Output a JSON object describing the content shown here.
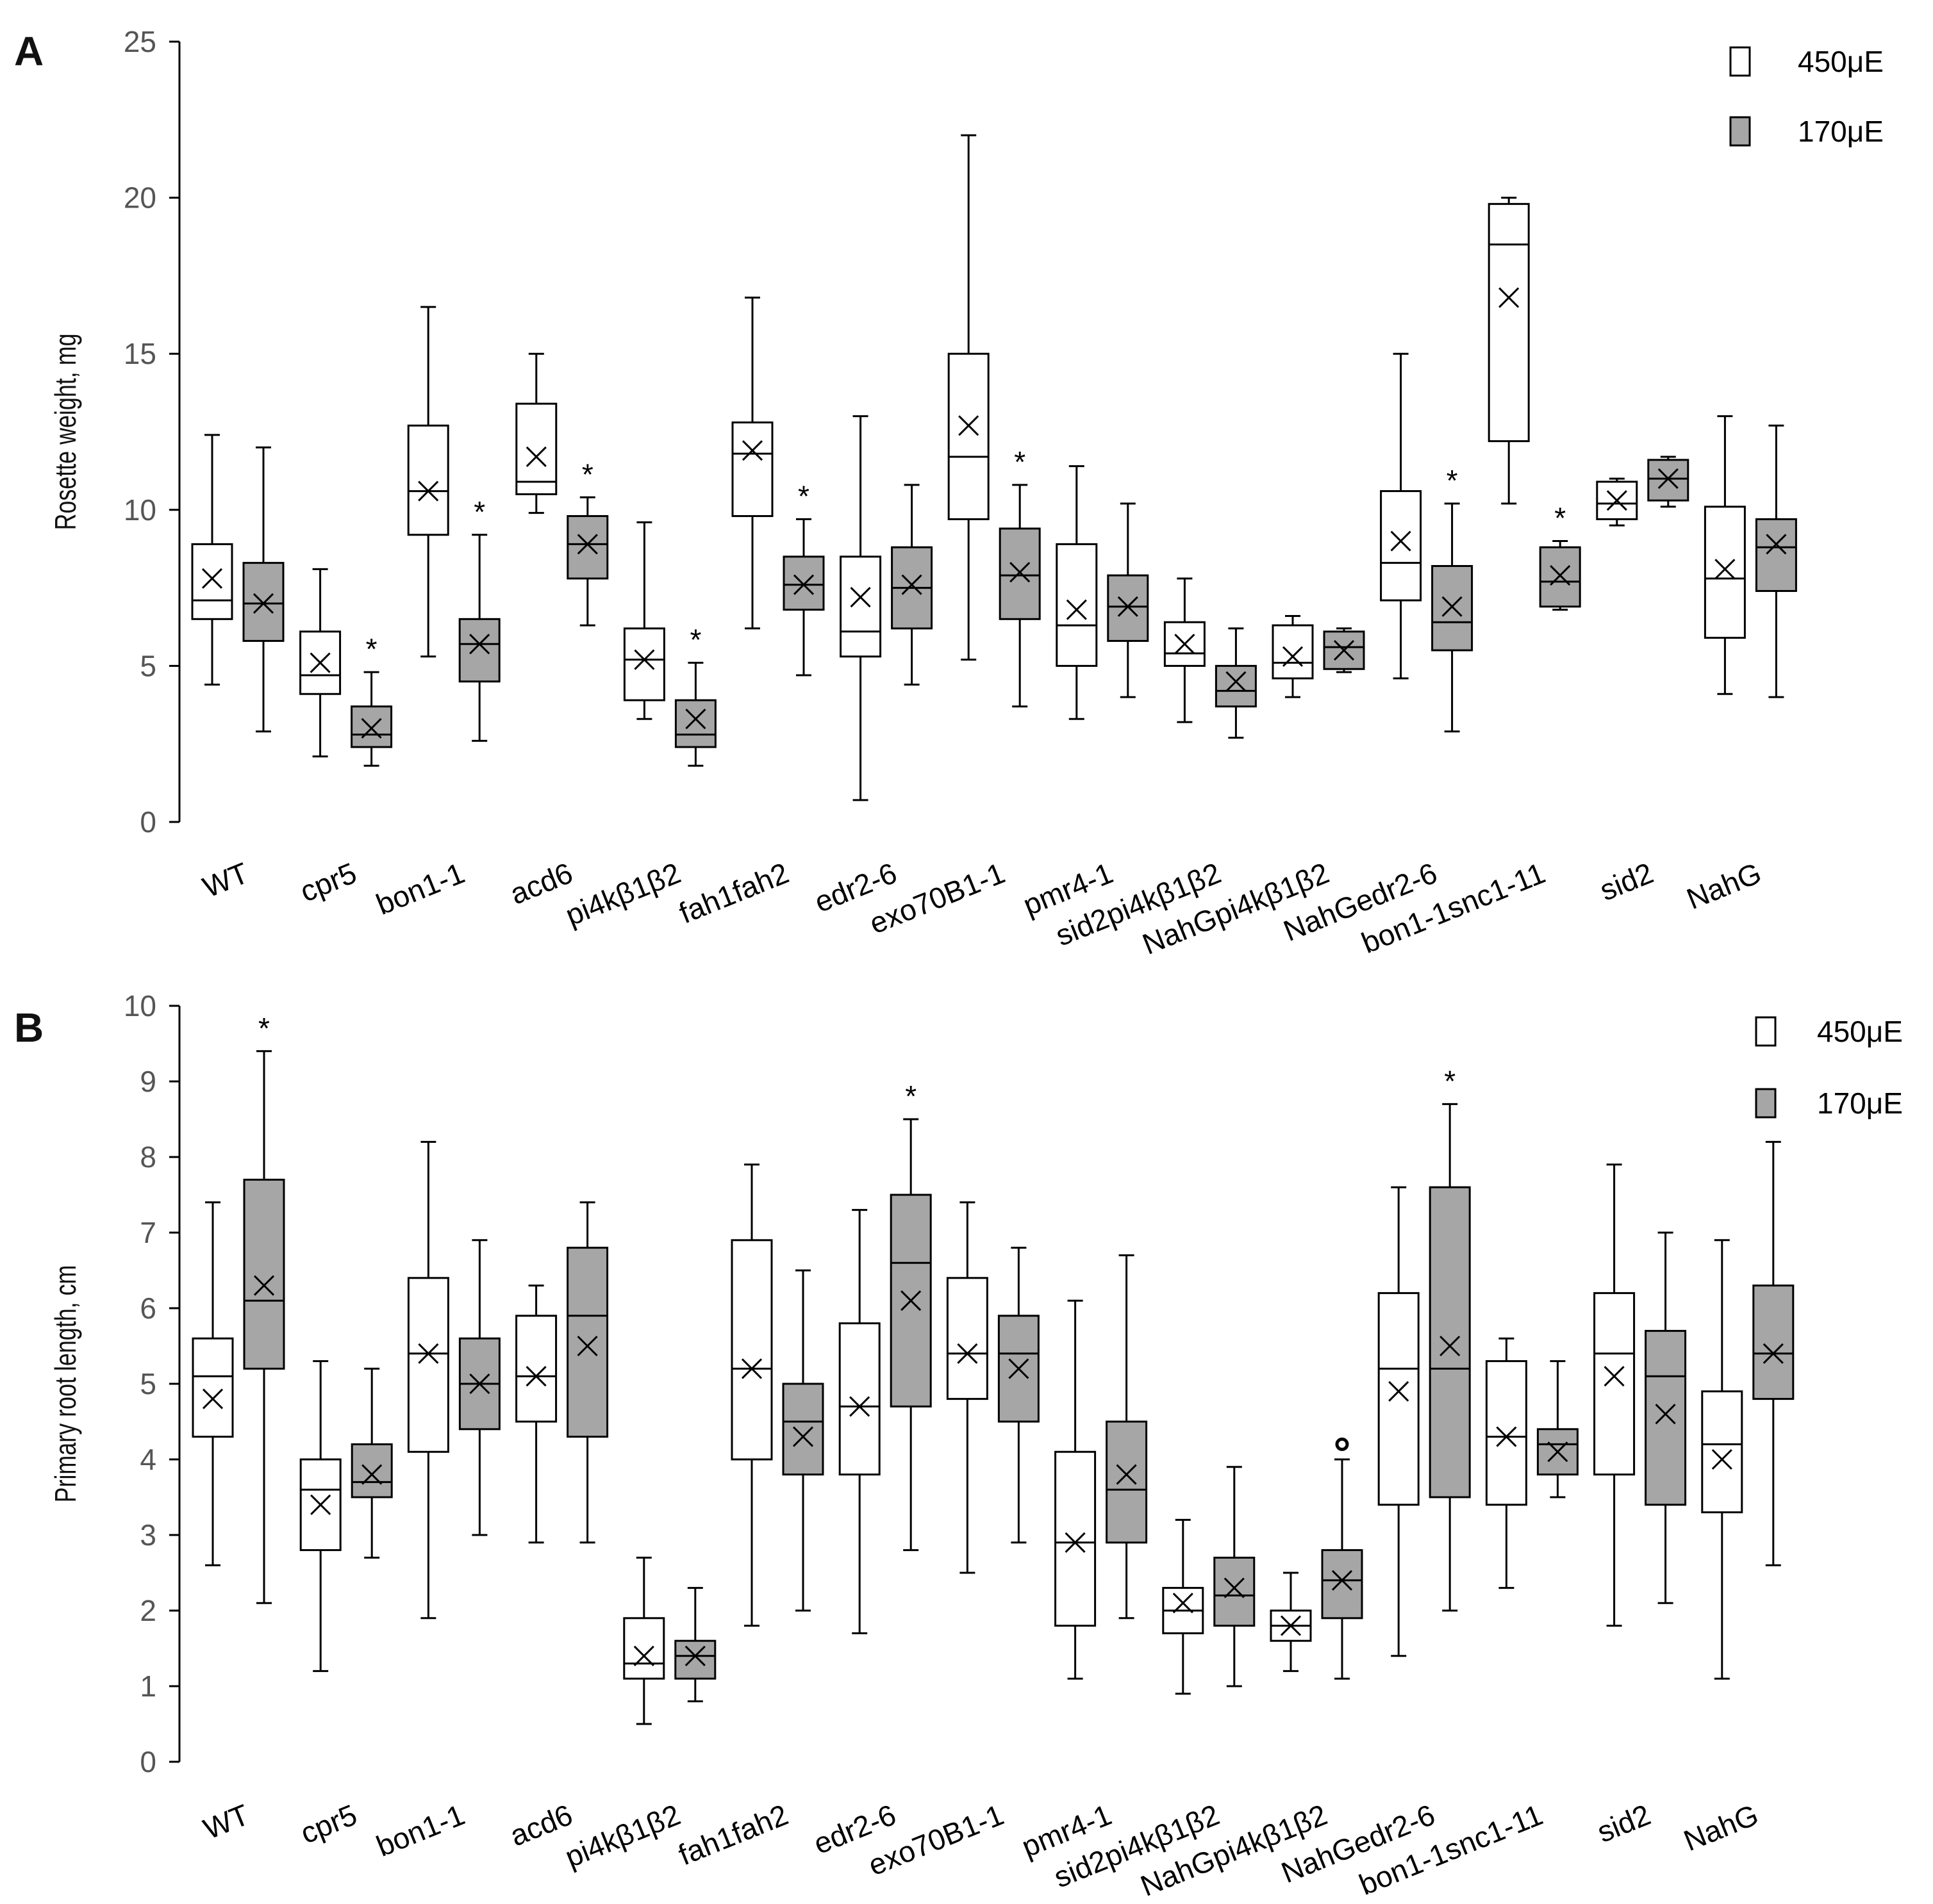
{
  "colors": {
    "light": "#ffffff",
    "light_label": "white",
    "shade": "#a6a6a6",
    "stroke": "#000000"
  },
  "chart_data": [
    {
      "type": "box",
      "panel": "A",
      "title": "",
      "ylabel": "Rosette weight, mg",
      "xlabel": "",
      "ylim": [
        0,
        25
      ],
      "yticks": [
        "0",
        "5",
        "10",
        "15",
        "20",
        "25"
      ],
      "legend": [
        {
          "label": "450μE",
          "fill": "white"
        },
        {
          "label": "170μE",
          "fill": "grey"
        }
      ],
      "legend_position": "top-right",
      "categories": [
        "WT",
        "cpr5",
        "bon1-1",
        "acd6",
        "pi4kβ1β2",
        "fah1fah2",
        "edr2-6",
        "exo70B1-1",
        "pmr4-1",
        "sid2pi4kβ1β2",
        "NahGpi4kβ1β2",
        "NahGedr2-6",
        "bon1-1snc1-11",
        "sid2",
        "NahG"
      ],
      "series": [
        {
          "name": "450μE",
          "boxes": [
            {
              "min": 4.4,
              "q1": 6.5,
              "median": 7.1,
              "q3": 8.9,
              "max": 12.4,
              "mean": 7.8,
              "sig": ""
            },
            {
              "min": 2.1,
              "q1": 4.1,
              "median": 4.7,
              "q3": 6.1,
              "max": 8.1,
              "mean": 5.1,
              "sig": ""
            },
            {
              "min": 5.3,
              "q1": 9.2,
              "median": 10.6,
              "q3": 12.7,
              "max": 16.5,
              "mean": 10.6,
              "sig": ""
            },
            {
              "min": 9.9,
              "q1": 10.5,
              "median": 10.9,
              "q3": 13.4,
              "max": 15.0,
              "mean": 11.7,
              "sig": ""
            },
            {
              "min": 3.3,
              "q1": 3.9,
              "median": 5.2,
              "q3": 6.2,
              "max": 9.6,
              "mean": 5.2,
              "sig": ""
            },
            {
              "min": 6.2,
              "q1": 9.8,
              "median": 11.8,
              "q3": 12.8,
              "max": 16.8,
              "mean": 11.9,
              "sig": ""
            },
            {
              "min": 0.7,
              "q1": 5.3,
              "median": 6.1,
              "q3": 8.5,
              "max": 13.0,
              "mean": 7.2,
              "sig": ""
            },
            {
              "min": 5.2,
              "q1": 9.7,
              "median": 11.7,
              "q3": 15.0,
              "max": 22.0,
              "mean": 12.7,
              "sig": ""
            },
            {
              "min": 3.3,
              "q1": 5.0,
              "median": 6.3,
              "q3": 8.9,
              "max": 11.4,
              "mean": 6.8,
              "sig": ""
            },
            {
              "min": 3.2,
              "q1": 5.0,
              "median": 5.4,
              "q3": 6.4,
              "max": 7.8,
              "mean": 5.7,
              "sig": ""
            },
            {
              "min": 4.0,
              "q1": 4.6,
              "median": 5.1,
              "q3": 6.3,
              "max": 6.6,
              "mean": 5.3,
              "sig": ""
            },
            {
              "min": 4.6,
              "q1": 7.1,
              "median": 8.3,
              "q3": 10.6,
              "max": 15.0,
              "mean": 9.0,
              "sig": ""
            },
            {
              "min": 10.2,
              "q1": 12.2,
              "median": 18.5,
              "q3": 19.8,
              "max": 20.0,
              "mean": 16.8,
              "sig": ""
            },
            {
              "min": 9.5,
              "q1": 9.7,
              "median": 10.2,
              "q3": 10.9,
              "max": 11.0,
              "mean": 10.3,
              "sig": ""
            },
            {
              "min": 4.1,
              "q1": 5.9,
              "median": 7.8,
              "q3": 10.1,
              "max": 13.0,
              "mean": 8.1,
              "sig": ""
            }
          ]
        },
        {
          "name": "170μE",
          "boxes": [
            {
              "min": 2.9,
              "q1": 5.8,
              "median": 7.0,
              "q3": 8.3,
              "max": 12.0,
              "mean": 7.0,
              "sig": ""
            },
            {
              "min": 1.8,
              "q1": 2.4,
              "median": 2.8,
              "q3": 3.7,
              "max": 4.8,
              "mean": 3.0,
              "sig": "*"
            },
            {
              "min": 2.6,
              "q1": 4.5,
              "median": 5.7,
              "q3": 6.5,
              "max": 9.2,
              "mean": 5.7,
              "sig": "*"
            },
            {
              "min": 6.3,
              "q1": 7.8,
              "median": 8.9,
              "q3": 9.8,
              "max": 10.4,
              "mean": 8.9,
              "sig": "*"
            },
            {
              "min": 1.8,
              "q1": 2.4,
              "median": 2.8,
              "q3": 3.9,
              "max": 5.1,
              "mean": 3.3,
              "sig": "*"
            },
            {
              "min": 4.7,
              "q1": 6.8,
              "median": 7.6,
              "q3": 8.5,
              "max": 9.7,
              "mean": 7.6,
              "sig": "*"
            },
            {
              "min": 4.4,
              "q1": 6.2,
              "median": 7.5,
              "q3": 8.8,
              "max": 10.8,
              "mean": 7.6,
              "sig": ""
            },
            {
              "min": 3.7,
              "q1": 6.5,
              "median": 7.9,
              "q3": 9.4,
              "max": 10.8,
              "mean": 8.0,
              "sig": "*"
            },
            {
              "min": 4.0,
              "q1": 5.8,
              "median": 6.9,
              "q3": 7.9,
              "max": 10.2,
              "mean": 6.9,
              "sig": ""
            },
            {
              "min": 2.7,
              "q1": 3.7,
              "median": 4.2,
              "q3": 5.0,
              "max": 6.2,
              "mean": 4.5,
              "sig": ""
            },
            {
              "min": 4.8,
              "q1": 4.9,
              "median": 5.6,
              "q3": 6.1,
              "max": 6.2,
              "mean": 5.5,
              "sig": ""
            },
            {
              "min": 2.9,
              "q1": 5.5,
              "median": 6.4,
              "q3": 8.2,
              "max": 10.2,
              "mean": 6.9,
              "sig": "*"
            },
            {
              "min": 6.8,
              "q1": 6.9,
              "median": 7.7,
              "q3": 8.8,
              "max": 9.0,
              "mean": 7.9,
              "sig": "*"
            },
            {
              "min": 10.1,
              "q1": 10.3,
              "median": 11.0,
              "q3": 11.6,
              "max": 11.7,
              "mean": 11.0,
              "sig": ""
            },
            {
              "min": 4.0,
              "q1": 7.4,
              "median": 8.8,
              "q3": 9.7,
              "max": 12.7,
              "mean": 8.9,
              "sig": ""
            }
          ]
        }
      ]
    },
    {
      "type": "box",
      "panel": "B",
      "title": "",
      "ylabel": "Primary root length, cm",
      "xlabel": "",
      "ylim": [
        0,
        10
      ],
      "yticks": [
        "0",
        "1",
        "2",
        "3",
        "4",
        "5",
        "6",
        "7",
        "8",
        "9",
        "10"
      ],
      "legend": [
        {
          "label": "450μE",
          "fill": "white"
        },
        {
          "label": "170μE",
          "fill": "grey"
        }
      ],
      "legend_position": "top-right",
      "categories": [
        "WT",
        "cpr5",
        "bon1-1",
        "acd6",
        "pi4kβ1β2",
        "fah1fah2",
        "edr2-6",
        "exo70B1-1",
        "pmr4-1",
        "sid2pi4kβ1β2",
        "NahGpi4kβ1β2",
        "NahGedr2-6",
        "bon1-1snc1-11",
        "sid2",
        "NahG"
      ],
      "series": [
        {
          "name": "450μE",
          "boxes": [
            {
              "min": 2.6,
              "q1": 4.3,
              "median": 5.1,
              "q3": 5.6,
              "max": 7.4,
              "mean": 4.8,
              "sig": ""
            },
            {
              "min": 1.2,
              "q1": 2.8,
              "median": 3.6,
              "q3": 4.0,
              "max": 5.3,
              "mean": 3.4,
              "sig": ""
            },
            {
              "min": 1.9,
              "q1": 4.1,
              "median": 5.4,
              "q3": 6.4,
              "max": 8.2,
              "mean": 5.4,
              "sig": ""
            },
            {
              "min": 2.9,
              "q1": 4.5,
              "median": 5.1,
              "q3": 5.9,
              "max": 6.3,
              "mean": 5.1,
              "sig": ""
            },
            {
              "min": 0.5,
              "q1": 1.1,
              "median": 1.3,
              "q3": 1.9,
              "max": 2.7,
              "mean": 1.4,
              "sig": ""
            },
            {
              "min": 1.8,
              "q1": 4.0,
              "median": 5.2,
              "q3": 6.9,
              "max": 7.9,
              "mean": 5.2,
              "sig": ""
            },
            {
              "min": 1.7,
              "q1": 3.8,
              "median": 4.7,
              "q3": 5.8,
              "max": 7.3,
              "mean": 4.7,
              "sig": ""
            },
            {
              "min": 2.5,
              "q1": 4.8,
              "median": 5.4,
              "q3": 6.4,
              "max": 7.4,
              "mean": 5.4,
              "sig": ""
            },
            {
              "min": 1.1,
              "q1": 1.8,
              "median": 2.9,
              "q3": 4.1,
              "max": 6.1,
              "mean": 2.9,
              "sig": ""
            },
            {
              "min": 0.9,
              "q1": 1.7,
              "median": 2.0,
              "q3": 2.3,
              "max": 3.2,
              "mean": 2.1,
              "sig": ""
            },
            {
              "min": 1.2,
              "q1": 1.6,
              "median": 1.8,
              "q3": 2.0,
              "max": 2.5,
              "mean": 1.8,
              "sig": ""
            },
            {
              "min": 1.4,
              "q1": 3.4,
              "median": 5.2,
              "q3": 6.2,
              "max": 7.6,
              "mean": 4.9,
              "sig": ""
            },
            {
              "min": 2.3,
              "q1": 3.4,
              "median": 4.3,
              "q3": 5.3,
              "max": 5.6,
              "mean": 4.3,
              "sig": ""
            },
            {
              "min": 1.8,
              "q1": 3.8,
              "median": 5.4,
              "q3": 6.2,
              "max": 7.9,
              "mean": 5.1,
              "sig": ""
            },
            {
              "min": 1.1,
              "q1": 3.3,
              "median": 4.2,
              "q3": 4.9,
              "max": 6.9,
              "mean": 4.0,
              "sig": ""
            }
          ]
        },
        {
          "name": "170μE",
          "boxes": [
            {
              "min": 2.1,
              "q1": 5.2,
              "median": 6.1,
              "q3": 7.7,
              "max": 9.4,
              "mean": 6.3,
              "sig": "*"
            },
            {
              "min": 2.7,
              "q1": 3.5,
              "median": 3.7,
              "q3": 4.2,
              "max": 5.2,
              "mean": 3.8,
              "sig": ""
            },
            {
              "min": 3.0,
              "q1": 4.4,
              "median": 5.0,
              "q3": 5.6,
              "max": 6.9,
              "mean": 5.0,
              "sig": ""
            },
            {
              "min": 2.9,
              "q1": 4.3,
              "median": 5.9,
              "q3": 6.8,
              "max": 7.4,
              "mean": 5.5,
              "sig": ""
            },
            {
              "min": 0.8,
              "q1": 1.1,
              "median": 1.4,
              "q3": 1.6,
              "max": 2.3,
              "mean": 1.4,
              "sig": ""
            },
            {
              "min": 2.0,
              "q1": 3.8,
              "median": 4.5,
              "q3": 5.0,
              "max": 6.5,
              "mean": 4.3,
              "sig": ""
            },
            {
              "min": 2.8,
              "q1": 4.7,
              "median": 6.6,
              "q3": 7.5,
              "max": 8.5,
              "mean": 6.1,
              "sig": "*"
            },
            {
              "min": 2.9,
              "q1": 4.5,
              "median": 5.4,
              "q3": 5.9,
              "max": 6.8,
              "mean": 5.2,
              "sig": ""
            },
            {
              "min": 1.9,
              "q1": 2.9,
              "median": 3.6,
              "q3": 4.5,
              "max": 6.7,
              "mean": 3.8,
              "sig": ""
            },
            {
              "min": 1.0,
              "q1": 1.8,
              "median": 2.2,
              "q3": 2.7,
              "max": 3.9,
              "mean": 2.3,
              "sig": ""
            },
            {
              "min": 1.1,
              "q1": 1.9,
              "median": 2.4,
              "q3": 2.8,
              "max": 4.0,
              "mean": 2.4,
              "sig": "",
              "outliers": [
                4.2
              ]
            },
            {
              "min": 2.0,
              "q1": 3.5,
              "median": 5.2,
              "q3": 7.6,
              "max": 8.7,
              "mean": 5.5,
              "sig": "*"
            },
            {
              "min": 3.5,
              "q1": 3.8,
              "median": 4.2,
              "q3": 4.4,
              "max": 5.3,
              "mean": 4.1,
              "sig": ""
            },
            {
              "min": 2.1,
              "q1": 3.4,
              "median": 5.1,
              "q3": 5.7,
              "max": 7.0,
              "mean": 4.6,
              "sig": ""
            },
            {
              "min": 2.6,
              "q1": 4.8,
              "median": 5.4,
              "q3": 6.3,
              "max": 8.2,
              "mean": 5.4,
              "sig": ""
            }
          ]
        }
      ]
    }
  ]
}
